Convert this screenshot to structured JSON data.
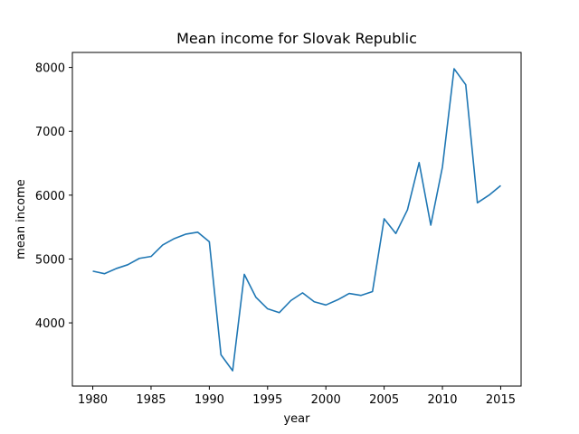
{
  "chart_data": {
    "type": "line",
    "title": "Mean income for Slovak Republic",
    "xlabel": "year",
    "ylabel": "mean income",
    "xlim": [
      1978.25,
      2016.75
    ],
    "ylim": [
      3010,
      8235
    ],
    "xticks": [
      1980,
      1985,
      1990,
      1995,
      2000,
      2005,
      2010,
      2015
    ],
    "yticks": [
      4000,
      5000,
      6000,
      7000,
      8000
    ],
    "grid": false,
    "legend": "none",
    "series": [
      {
        "color": "#1f77b4",
        "x": [
          1980,
          1981,
          1982,
          1983,
          1984,
          1985,
          1986,
          1987,
          1988,
          1989,
          1990,
          1991,
          1992,
          1993,
          1994,
          1995,
          1996,
          1997,
          1998,
          1999,
          2000,
          2001,
          2002,
          2003,
          2004,
          2005,
          2006,
          2007,
          2008,
          2009,
          2010,
          2011,
          2012,
          2013,
          2014,
          2015
        ],
        "y": [
          4810,
          4770,
          4850,
          4910,
          5010,
          5040,
          5220,
          5320,
          5390,
          5420,
          5270,
          3500,
          3250,
          4760,
          4400,
          4220,
          4160,
          4350,
          4470,
          4330,
          4280,
          4360,
          4460,
          4430,
          4490,
          5630,
          5400,
          5770,
          6510,
          5530,
          6440,
          7980,
          7730,
          5880,
          6000,
          6150
        ]
      }
    ]
  }
}
